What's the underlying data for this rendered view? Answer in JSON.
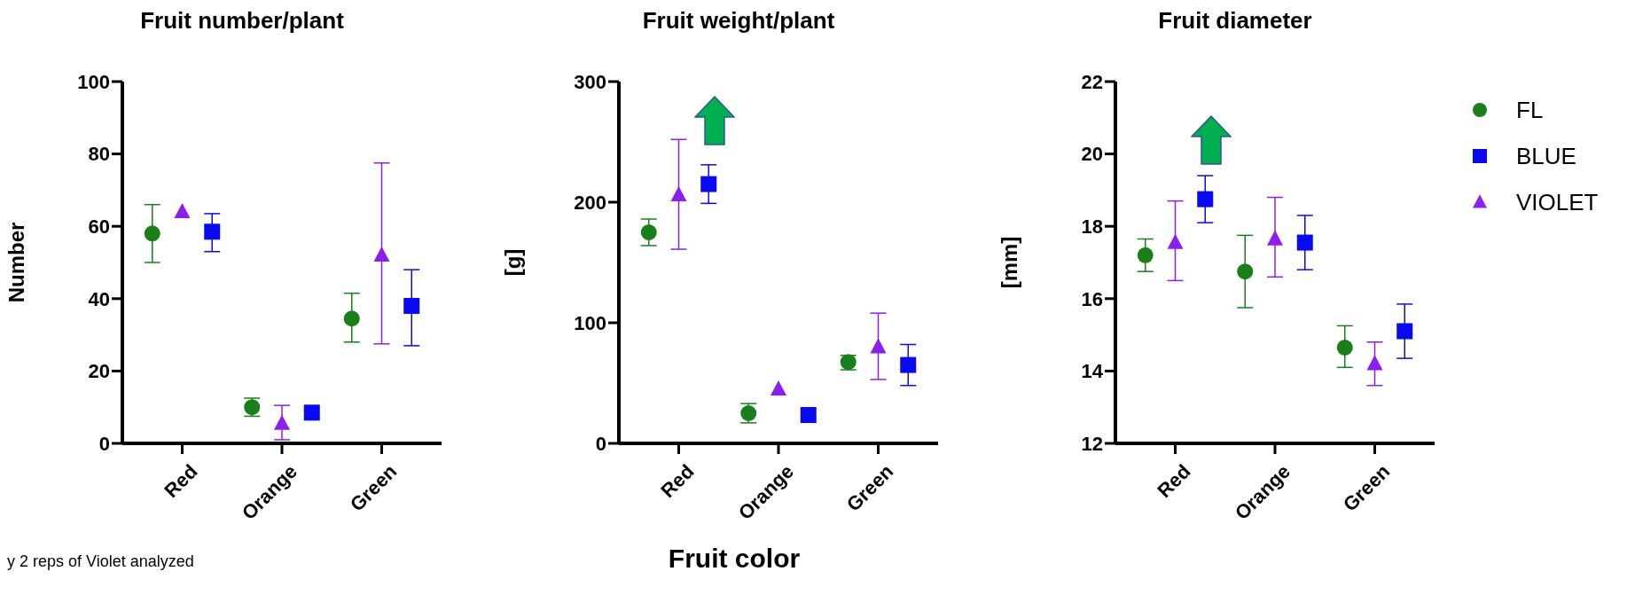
{
  "chart_data": [
    {
      "type": "scatter",
      "title": "Fruit number/plant",
      "ylabel": "Number",
      "categories": [
        "Red",
        "Orange",
        "Green"
      ],
      "ylim": [
        0,
        100
      ],
      "yticks": [
        0,
        20,
        40,
        60,
        80,
        100
      ],
      "grid": false,
      "legend": false,
      "annotations": [
        "y 2 reps of Violet analyzed"
      ],
      "series": [
        {
          "color": "#1a7f1a",
          "marker": "circle",
          "values": [
            58,
            10,
            34.5
          ],
          "errors": [
            [
              50,
              66
            ],
            [
              7.5,
              12.5
            ],
            [
              28,
              41.5
            ]
          ]
        },
        {
          "color": "#8b1ff0",
          "marker": "triangle",
          "values": [
            64,
            5.5,
            52
          ],
          "errors": [
            null,
            [
              1,
              10.5
            ],
            [
              27.5,
              77.5
            ]
          ]
        },
        {
          "color": "#0a0af0",
          "marker": "square",
          "values": [
            58.5,
            8.5,
            38
          ],
          "errors": [
            [
              53,
              63.5
            ],
            null,
            [
              27,
              48
            ]
          ]
        }
      ]
    },
    {
      "type": "scatter",
      "title": "Fruit weight/plant",
      "ylabel": "[g]",
      "xlabel": "Fruit color",
      "categories": [
        "Red",
        "Orange",
        "Green"
      ],
      "ylim": [
        0,
        300
      ],
      "yticks": [
        0,
        100,
        200,
        300
      ],
      "grid": false,
      "legend": false,
      "series": [
        {
          "color": "#1a7f1a",
          "marker": "circle",
          "values": [
            175,
            25,
            67.5
          ],
          "errors": [
            [
              164,
              186
            ],
            [
              17,
              33
            ],
            [
              61,
              73
            ]
          ]
        },
        {
          "color": "#8b1ff0",
          "marker": "triangle",
          "values": [
            206,
            45,
            80
          ],
          "errors": [
            [
              161,
              252
            ],
            null,
            [
              53,
              108
            ]
          ]
        },
        {
          "color": "#0a0af0",
          "marker": "square",
          "values": [
            215,
            23.5,
            65
          ],
          "errors": [
            [
              199,
              231
            ],
            null,
            [
              48,
              82
            ]
          ]
        }
      ]
    },
    {
      "type": "scatter",
      "title": "Fruit diameter",
      "ylabel": "[mm]",
      "categories": [
        "Red",
        "Orange",
        "Green"
      ],
      "ylim": [
        12,
        22
      ],
      "yticks": [
        12,
        14,
        16,
        18,
        20,
        22
      ],
      "grid": false,
      "legend": "right",
      "series": [
        {
          "name": "FL",
          "color": "#1a7f1a",
          "marker": "circle",
          "values": [
            17.2,
            16.75,
            14.65
          ],
          "errors": [
            [
              16.75,
              17.65
            ],
            [
              15.75,
              17.75
            ],
            [
              14.1,
              15.25
            ]
          ]
        },
        {
          "name": "VIOLET",
          "color": "#8b1ff0",
          "marker": "triangle",
          "values": [
            17.55,
            17.65,
            14.2
          ],
          "errors": [
            [
              16.5,
              18.7
            ],
            [
              16.6,
              18.8
            ],
            [
              13.6,
              14.8
            ]
          ]
        },
        {
          "name": "BLUE",
          "color": "#0a0af0",
          "marker": "square",
          "values": [
            18.75,
            17.55,
            15.1
          ],
          "errors": [
            [
              18.1,
              19.4
            ],
            [
              16.8,
              18.3
            ],
            [
              14.35,
              15.85
            ]
          ]
        }
      ]
    }
  ]
}
